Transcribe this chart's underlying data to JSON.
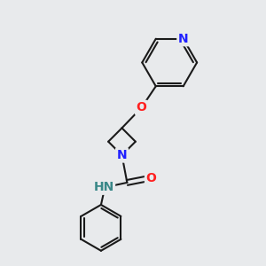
{
  "bg_color": "#e8eaec",
  "bond_color": "#1a1a1a",
  "bond_width": 1.5,
  "atom_colors": {
    "N": "#2020ff",
    "O": "#ff2020",
    "NH": "#3a8888",
    "H": "#3a8888"
  },
  "font_size_atom": 10,
  "figsize": [
    3.0,
    3.0
  ],
  "dpi": 100,
  "xlim": [
    0,
    10
  ],
  "ylim": [
    0,
    10
  ]
}
